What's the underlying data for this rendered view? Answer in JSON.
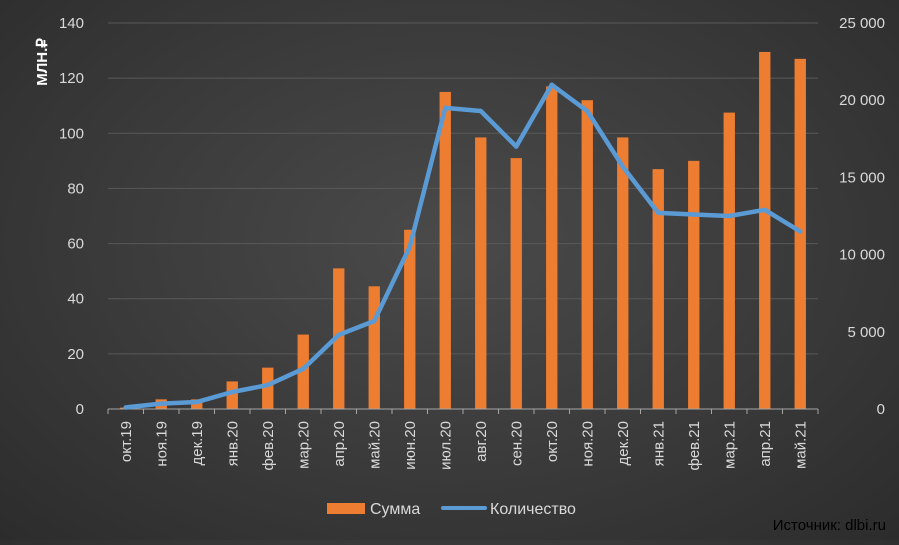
{
  "chart_data": {
    "type": "bar",
    "categories": [
      "окт.19",
      "ноя.19",
      "дек.19",
      "янв.20",
      "фев.20",
      "мар.20",
      "апр.20",
      "май.20",
      "июн.20",
      "июл.20",
      "авг.20",
      "сен.20",
      "окт.20",
      "ноя.20",
      "дек.20",
      "янв.21",
      "фев.21",
      "мар.21",
      "апр.21",
      "май.21"
    ],
    "ylabel": "МЛН.₽",
    "ylim": [
      0,
      140
    ],
    "y_ticks": [
      "0",
      "20",
      "40",
      "60",
      "80",
      "100",
      "120",
      "140"
    ],
    "y2lim": [
      0,
      25000
    ],
    "y2_ticks": [
      "0",
      "5 000",
      "10 000",
      "15 000",
      "20 000",
      "25 000"
    ],
    "grid": true,
    "legend_position": "bottom",
    "series": [
      {
        "name": "Сумма",
        "type": "bar",
        "axis": "left",
        "color": "#ed7d31",
        "values": [
          0.5,
          3.5,
          3.5,
          10,
          15,
          27,
          51,
          44.5,
          65,
          115,
          98.5,
          91,
          117,
          112,
          98.5,
          87,
          90,
          107.5,
          129.5,
          127
        ]
      },
      {
        "name": "Количество",
        "type": "line",
        "axis": "right",
        "color": "#5b9bd5",
        "values": [
          100,
          350,
          450,
          1100,
          1550,
          2600,
          4800,
          5700,
          10500,
          19500,
          19300,
          17000,
          21000,
          19300,
          15700,
          12700,
          12600,
          12500,
          12900,
          11500
        ]
      }
    ]
  },
  "source_text": "Источник: dlbi.ru"
}
